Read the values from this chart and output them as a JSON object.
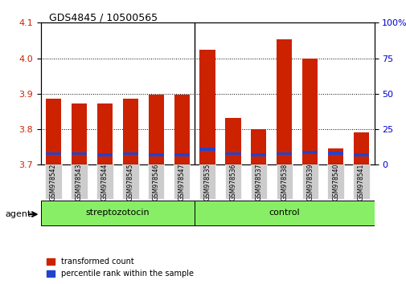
{
  "title": "GDS4845 / 10500565",
  "categories": [
    "GSM978542",
    "GSM978543",
    "GSM978544",
    "GSM978545",
    "GSM978546",
    "GSM978547",
    "GSM978535",
    "GSM978536",
    "GSM978537",
    "GSM978538",
    "GSM978539",
    "GSM978540",
    "GSM978541"
  ],
  "group_labels": [
    "streptozotocin",
    "control"
  ],
  "group_boundaries": [
    0,
    6,
    13
  ],
  "red_values": [
    3.885,
    3.872,
    3.872,
    3.885,
    3.898,
    3.898,
    4.025,
    3.832,
    3.8,
    4.053,
    4.0,
    3.745,
    3.79
  ],
  "blue_positions": [
    3.727,
    3.727,
    3.724,
    3.727,
    3.724,
    3.724,
    3.74,
    3.727,
    3.724,
    3.727,
    3.73,
    3.727,
    3.724
  ],
  "blue_heights": [
    0.008,
    0.008,
    0.008,
    0.008,
    0.008,
    0.008,
    0.008,
    0.008,
    0.008,
    0.008,
    0.01,
    0.01,
    0.008
  ],
  "ylim": [
    3.7,
    4.1
  ],
  "yticks_left": [
    3.7,
    3.8,
    3.9,
    4.0,
    4.1
  ],
  "yticks_right": [
    0,
    25,
    50,
    75,
    100
  ],
  "bar_width": 0.6,
  "red_color": "#cc2200",
  "blue_color": "#2244cc",
  "group_bg_color": "#88ee66",
  "tick_bg_color": "#cccccc",
  "legend_red_label": "transformed count",
  "legend_blue_label": "percentile rank within the sample",
  "agent_label": "agent",
  "baseline": 3.7
}
